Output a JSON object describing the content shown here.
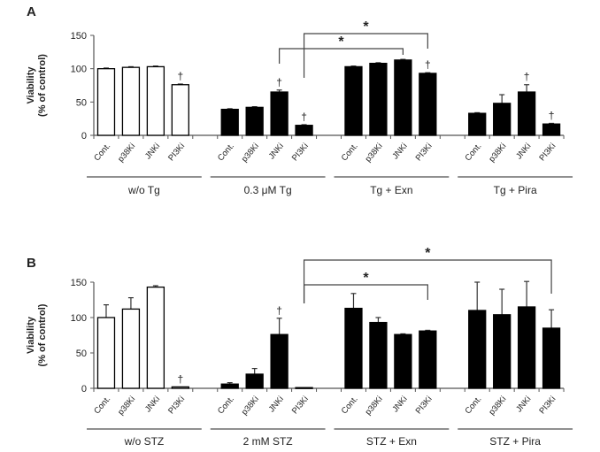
{
  "chart_data": [
    {
      "type": "bar",
      "panel_label": "A",
      "ylabel": [
        "Viability",
        "(% of control)"
      ],
      "ylim": [
        0,
        150
      ],
      "yticks": [
        "0",
        "50",
        "100",
        "150"
      ],
      "categories": [
        "Cont.",
        "p38Ki",
        "JNKi",
        "PI3Ki"
      ],
      "groups": [
        {
          "name": "w/o Tg",
          "fill": "white",
          "values": [
            100,
            102,
            103,
            76
          ],
          "errors": [
            1,
            1,
            1,
            1
          ],
          "dagger": [
            false,
            false,
            false,
            true
          ]
        },
        {
          "name": "0.3 μM Tg",
          "fill": "black",
          "values": [
            39,
            42,
            65,
            15
          ],
          "errors": [
            1,
            1,
            3,
            1
          ],
          "dagger": [
            false,
            false,
            true,
            true
          ]
        },
        {
          "name": "Tg + Exn",
          "fill": "black",
          "values": [
            103,
            108,
            113,
            93
          ],
          "errors": [
            1,
            1,
            1,
            1
          ],
          "dagger": [
            false,
            false,
            false,
            true
          ]
        },
        {
          "name": "Tg + Pira",
          "fill": "black",
          "values": [
            33,
            48,
            65,
            17
          ],
          "errors": [
            1,
            13,
            11,
            1
          ],
          "dagger": [
            false,
            false,
            true,
            true
          ]
        }
      ],
      "dagger_symbol": "†",
      "brackets": [
        {
          "from": [
            1,
            2
          ],
          "to": [
            2,
            2
          ],
          "label": "*"
        },
        {
          "from": [
            1,
            3
          ],
          "to": [
            2,
            3
          ],
          "label": "*"
        }
      ]
    },
    {
      "type": "bar",
      "panel_label": "B",
      "ylabel": [
        "Viability",
        "(% of control)"
      ],
      "ylim": [
        0,
        150
      ],
      "yticks": [
        "0",
        "50",
        "100",
        "150"
      ],
      "categories": [
        "Cont.",
        "p38Ki",
        "JNKi",
        "PI3Ki"
      ],
      "groups": [
        {
          "name": "w/o STZ",
          "fill": "white",
          "values": [
            100,
            112,
            143,
            2
          ],
          "errors": [
            18,
            16,
            2,
            0
          ],
          "dagger": [
            false,
            false,
            false,
            true
          ]
        },
        {
          "name": "2 mM STZ",
          "fill": "black",
          "values": [
            6,
            20,
            76,
            1
          ],
          "errors": [
            2,
            8,
            23,
            0
          ],
          "dagger": [
            false,
            false,
            true,
            false
          ]
        },
        {
          "name": "STZ + Exn",
          "fill": "black",
          "values": [
            113,
            93,
            76,
            81
          ],
          "errors": [
            21,
            7,
            1,
            1
          ],
          "dagger": [
            false,
            false,
            false,
            false
          ]
        },
        {
          "name": "STZ + Pira",
          "fill": "black",
          "values": [
            110,
            104,
            115,
            85
          ],
          "errors": [
            40,
            36,
            36,
            26
          ],
          "dagger": [
            false,
            false,
            false,
            false
          ]
        }
      ],
      "dagger_symbol": "†",
      "brackets": [
        {
          "from": [
            1,
            3
          ],
          "to": [
            2,
            3
          ],
          "label": "*"
        },
        {
          "from": [
            1,
            3
          ],
          "to": [
            3,
            3
          ],
          "label": "*"
        }
      ]
    }
  ]
}
